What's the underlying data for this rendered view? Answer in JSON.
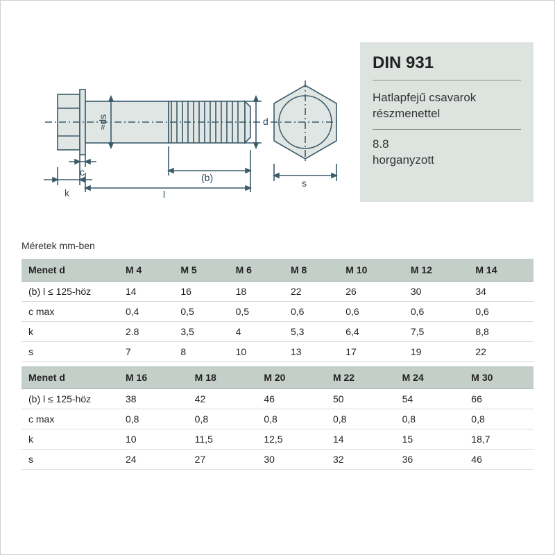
{
  "info": {
    "title": "DIN 931",
    "subtitle": "Hatlapfejű csavarok részmenettel",
    "spec": "8.8\nhorganyzott"
  },
  "units_label": "Méretek mm-ben",
  "diagram": {
    "stroke": "#3a5a6a",
    "fill": "#e0e6e4",
    "labels": {
      "ds": "≈ds",
      "d": "d",
      "c": "c",
      "k": "k",
      "l": "l",
      "b": "(b)",
      "s": "s"
    }
  },
  "tables": [
    {
      "header_label": "Menet d",
      "headers": [
        "M 4",
        "M 5",
        "M 6",
        "M 8",
        "M 10",
        "M 12",
        "M 14"
      ],
      "rows": [
        {
          "label": "(b) l ≤ 125-höz",
          "vals": [
            "14",
            "16",
            "18",
            "22",
            "26",
            "30",
            "34"
          ]
        },
        {
          "label": "c max",
          "vals": [
            "0,4",
            "0,5",
            "0,5",
            "0,6",
            "0,6",
            "0,6",
            "0,6"
          ]
        },
        {
          "label": "k",
          "vals": [
            "2.8",
            "3,5",
            "4",
            "5,3",
            "6,4",
            "7,5",
            "8,8"
          ]
        },
        {
          "label": "s",
          "vals": [
            "7",
            "8",
            "10",
            "13",
            "17",
            "19",
            "22"
          ]
        }
      ]
    },
    {
      "header_label": "Menet d",
      "headers": [
        "M 16",
        "M 18",
        "M 20",
        "M 22",
        "M 24",
        "M 30"
      ],
      "rows": [
        {
          "label": "(b) l ≤ 125-höz",
          "vals": [
            "38",
            "42",
            "46",
            "50",
            "54",
            "66"
          ]
        },
        {
          "label": "c max",
          "vals": [
            "0,8",
            "0,8",
            "0,8",
            "0,8",
            "0,8",
            "0,8"
          ]
        },
        {
          "label": "k",
          "vals": [
            "10",
            "11,5",
            "12,5",
            "14",
            "15",
            "18,7"
          ]
        },
        {
          "label": "s",
          "vals": [
            "24",
            "27",
            "30",
            "32",
            "36",
            "46"
          ]
        }
      ]
    }
  ],
  "colors": {
    "info_bg": "#dde4e0",
    "th_bg": "#c5cfc9",
    "row_border": "#d7ddd9",
    "th_border": "#aab3ad",
    "page_border": "#d0d0d0",
    "text": "#222222"
  }
}
